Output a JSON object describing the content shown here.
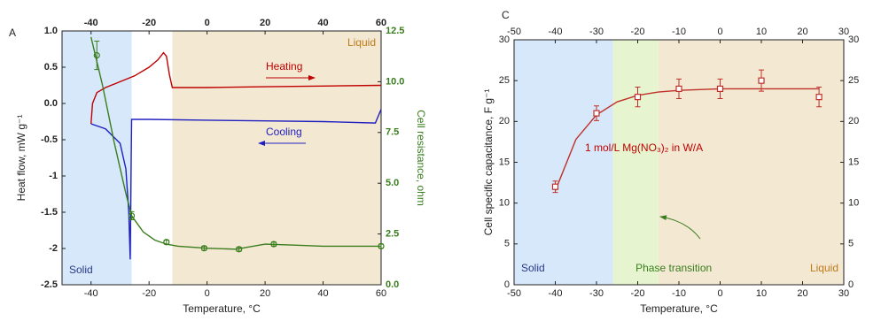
{
  "chart_data": [
    {
      "type": "line",
      "panel": "A",
      "xlabel": "Temperature, °C",
      "ylabel": "Heat flow, mW g⁻¹",
      "y2label": "Cell resistance, ohm",
      "xlim": [
        -50,
        60
      ],
      "xticks": [
        -40,
        -20,
        0,
        20,
        40,
        60
      ],
      "top_axis": true,
      "ylim": [
        -2.5,
        1.0
      ],
      "yticks": [
        -2.5,
        -2.0,
        -1.5,
        -1.0,
        -0.5,
        {
          "value": 0,
          "label": "0.0"
        },
        0.5,
        {
          "value": 1,
          "label": "1.0"
        }
      ],
      "y2lim": [
        0,
        12.5
      ],
      "y2ticks": [
        {
          "value": 0,
          "label": "0.0"
        },
        2.5,
        {
          "value": 5,
          "label": "5.0"
        },
        7.5,
        {
          "value": 10,
          "label": "10.0"
        },
        12.5
      ],
      "y2color": "#3a7d1e",
      "regions": [
        {
          "label": "Solid",
          "x": [
            -50,
            -26
          ],
          "color": "#d6e8fa"
        },
        {
          "label": "Liquid",
          "x": [
            -12,
            60
          ],
          "color": "#f3e8d2"
        }
      ],
      "annotations": [
        {
          "text": "Heating",
          "color": "#c00000"
        },
        {
          "text": "Cooling",
          "color": "#2020c0"
        }
      ],
      "series": [
        {
          "color": "#c00000",
          "x": [
            -40,
            -39.5,
            -38,
            -35,
            -30,
            -25,
            -20,
            -17,
            -15,
            -14,
            -13,
            -12,
            -11,
            0,
            20,
            40,
            60
          ],
          "values": [
            -0.28,
            0.0,
            0.15,
            0.22,
            0.3,
            0.38,
            0.5,
            0.6,
            0.7,
            0.65,
            0.4,
            0.22,
            0.22,
            0.22,
            0.23,
            0.24,
            0.25
          ]
        },
        {
          "color": "#2020c0",
          "x": [
            -40,
            -35,
            -30,
            -28,
            -27,
            -26.5,
            -26,
            -20,
            0,
            20,
            40,
            58,
            60
          ],
          "values": [
            -0.28,
            -0.35,
            -0.55,
            -0.9,
            -1.5,
            -2.15,
            -0.22,
            -0.22,
            -0.23,
            -0.24,
            -0.25,
            -0.27,
            -0.08
          ]
        },
        {
          "color": "#3a7d1e",
          "axis": "y2",
          "x": [
            -40,
            -36,
            -32,
            -28,
            -26,
            -22,
            -18,
            -14,
            -10,
            0,
            10,
            20,
            30,
            40,
            50,
            60
          ],
          "values": [
            12.2,
            9.8,
            7.0,
            4.5,
            3.4,
            2.6,
            2.2,
            2.0,
            1.9,
            1.8,
            1.75,
            2.0,
            1.95,
            1.9,
            1.9,
            1.9
          ]
        },
        {
          "color": "#3a7d1e",
          "axis": "y2",
          "line": false,
          "marker": "circle",
          "x": [
            -38,
            -26,
            -14,
            -1,
            11,
            23,
            60
          ],
          "values": [
            11.3,
            3.4,
            2.1,
            1.8,
            1.75,
            2.0,
            1.9
          ],
          "errors": [
            0.7,
            0.2,
            0.1,
            0.1,
            0.1,
            0.1,
            0.1
          ]
        }
      ]
    },
    {
      "type": "line",
      "panel": "C",
      "xlabel": "Temperature, °C",
      "ylabel": "Cell specific capacitance, F g⁻¹",
      "xlim": [
        -50,
        30
      ],
      "xticks": [
        -50,
        -40,
        -30,
        -20,
        -10,
        0,
        10,
        20,
        30
      ],
      "top_axis": true,
      "ylim": [
        0,
        30
      ],
      "yticks": [
        0,
        5,
        10,
        15,
        20,
        25,
        30
      ],
      "y2lim": [
        0,
        30
      ],
      "y2ticks": [
        0,
        5,
        10,
        15,
        20,
        25,
        30
      ],
      "y2color": "#222222",
      "regions": [
        {
          "label": "Solid",
          "x": [
            -50,
            -26
          ],
          "color": "#d6e8fa"
        },
        {
          "label": "Phase transition",
          "x": [
            -26,
            -15
          ],
          "color": "#e6f5cf"
        },
        {
          "label": "Liquid",
          "x": [
            -15,
            30
          ],
          "color": "#f3e8d2"
        }
      ],
      "annotations": [
        {
          "text": "1 mol/L Mg(NO₃)₂ in W/A",
          "color": "#c00000"
        }
      ],
      "series": [
        {
          "color": "#c0302a",
          "x": [
            -40,
            -35,
            -30,
            -25,
            -20,
            -15,
            -10,
            0,
            10,
            24
          ],
          "values": [
            11.5,
            17.8,
            20.8,
            22.4,
            23.2,
            23.6,
            23.8,
            24,
            24,
            24
          ]
        },
        {
          "color": "#c0302a",
          "line": false,
          "marker": "square",
          "x": [
            -40,
            -30,
            -20,
            -10,
            0,
            10,
            24
          ],
          "values": [
            12,
            21,
            23,
            24,
            24,
            25,
            23
          ],
          "errors": [
            0.7,
            0.9,
            1.2,
            1.2,
            1.2,
            1.3,
            1.2
          ]
        }
      ]
    }
  ]
}
